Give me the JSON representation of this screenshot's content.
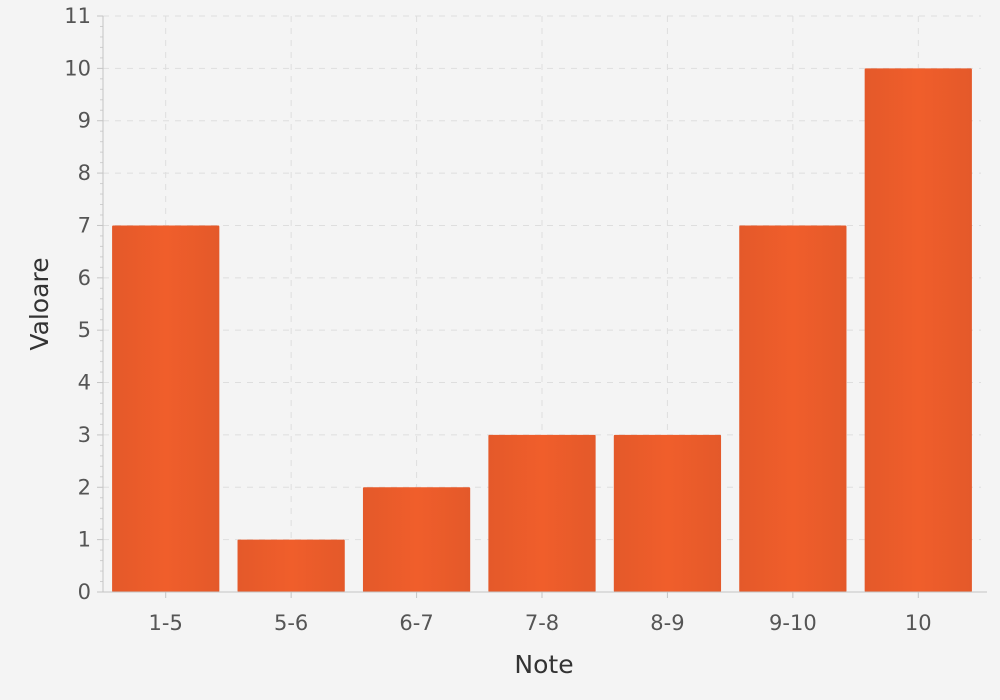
{
  "chart_data": {
    "type": "bar",
    "categories": [
      "1-5",
      "5-6",
      "6-7",
      "7-8",
      "8-9",
      "9-10",
      "10"
    ],
    "values": [
      7,
      1,
      2,
      3,
      3,
      7,
      10
    ],
    "title": "",
    "xlabel": "Note",
    "ylabel": "Valoare",
    "ylim": [
      0,
      11
    ],
    "yticks": [
      "0",
      "1",
      "2",
      "3",
      "4",
      "5",
      "6",
      "7",
      "8",
      "9",
      "10",
      "11"
    ],
    "grid": true,
    "bar_color": "#f05e2b",
    "bar_color_dark": "#e4592a"
  }
}
